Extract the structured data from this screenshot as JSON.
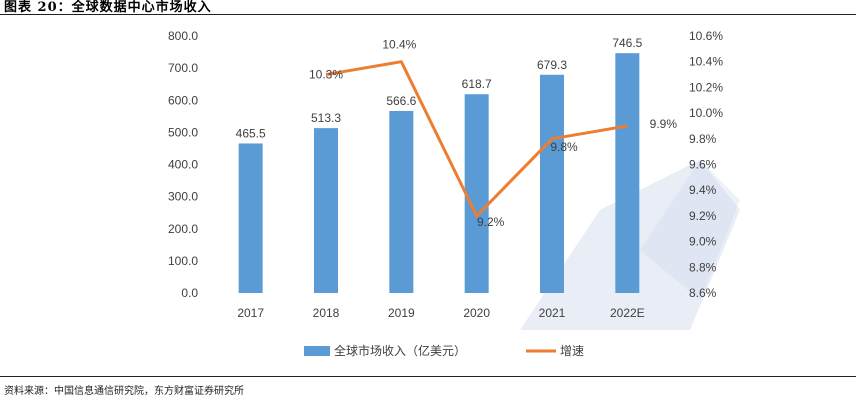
{
  "figure": {
    "title": "图表 20：全球数据中心市场收入",
    "source": "资料来源：中国信息通信研究院，东方财富证券研究所"
  },
  "colors": {
    "bar": "#5B9BD5",
    "line": "#ED7D31",
    "watermark": "#cfd8ea"
  },
  "chart_data": {
    "type": "bar",
    "categories": [
      "2017",
      "2018",
      "2019",
      "2020",
      "2021",
      "2022E"
    ],
    "series": [
      {
        "name": "全球市场收入（亿美元）",
        "type": "bar",
        "axis": "left",
        "values": [
          465.5,
          513.3,
          566.6,
          618.7,
          679.3,
          746.5
        ],
        "labels": [
          "465.5",
          "513.3",
          "566.6",
          "618.7",
          "679.3",
          "746.5"
        ]
      },
      {
        "name": "增速",
        "type": "line",
        "axis": "right",
        "values": [
          null,
          10.3,
          10.4,
          9.2,
          9.8,
          9.9
        ],
        "labels": [
          "",
          "10.3%",
          "10.4%",
          "9.2%",
          "9.8%",
          "9.9%"
        ]
      }
    ],
    "y_left": {
      "ylim": [
        0,
        800
      ],
      "ticks": [
        "0.0",
        "100.0",
        "200.0",
        "300.0",
        "400.0",
        "500.0",
        "600.0",
        "700.0",
        "800.0"
      ]
    },
    "y_right": {
      "ylim": [
        8.6,
        10.6
      ],
      "ticks": [
        "8.6%",
        "8.8%",
        "9.0%",
        "9.2%",
        "9.4%",
        "9.6%",
        "9.8%",
        "10.0%",
        "10.2%",
        "10.4%",
        "10.6%"
      ]
    },
    "legend": "bottom",
    "grid": false
  }
}
